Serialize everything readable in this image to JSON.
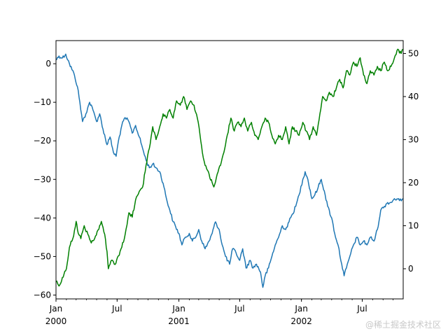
{
  "chart_data": {
    "type": "line",
    "x_axis": {
      "type": "date",
      "range": [
        "2000-01-01",
        "2002-10-31"
      ],
      "major_ticks": [
        {
          "date": "2000-01-01",
          "label": "Jan",
          "sublabel": "2000"
        },
        {
          "date": "2000-07-01",
          "label": "Jul",
          "sublabel": ""
        },
        {
          "date": "2001-01-01",
          "label": "Jan",
          "sublabel": "2001"
        },
        {
          "date": "2001-07-01",
          "label": "Jul",
          "sublabel": ""
        },
        {
          "date": "2002-01-01",
          "label": "Jan",
          "sublabel": "2002"
        },
        {
          "date": "2002-07-01",
          "label": "Jul",
          "sublabel": ""
        }
      ]
    },
    "left_axis": {
      "ylim": [
        -61,
        6
      ],
      "ticks": [
        0,
        -10,
        -20,
        -30,
        -40,
        -50,
        -60
      ],
      "tick_labels": [
        "0",
        "−10",
        "−20",
        "−30",
        "−40",
        "−50",
        "−60"
      ]
    },
    "right_axis": {
      "ylim": [
        -7,
        53
      ],
      "ticks": [
        0,
        10,
        20,
        30,
        40,
        50
      ],
      "tick_labels": [
        "0",
        "10",
        "20",
        "30",
        "40",
        "50"
      ]
    },
    "grid": false,
    "series": [
      {
        "axis": "left",
        "color": "#1f77b4",
        "points": [
          [
            "2000-01-01",
            1
          ],
          [
            "2000-01-10",
            2
          ],
          [
            "2000-01-20",
            1.5
          ],
          [
            "2000-01-30",
            2.5
          ],
          [
            "2000-02-10",
            0
          ],
          [
            "2000-02-25",
            -3
          ],
          [
            "2000-03-05",
            -6
          ],
          [
            "2000-03-12",
            -10
          ],
          [
            "2000-03-20",
            -15
          ],
          [
            "2000-03-30",
            -13
          ],
          [
            "2000-04-10",
            -10
          ],
          [
            "2000-04-20",
            -12
          ],
          [
            "2000-05-01",
            -15
          ],
          [
            "2000-05-10",
            -13
          ],
          [
            "2000-05-20",
            -17
          ],
          [
            "2000-06-01",
            -21
          ],
          [
            "2000-06-10",
            -19
          ],
          [
            "2000-06-20",
            -23
          ],
          [
            "2000-06-28",
            -24
          ],
          [
            "2000-07-05",
            -20
          ],
          [
            "2000-07-15",
            -16
          ],
          [
            "2000-07-25",
            -14
          ],
          [
            "2000-08-05",
            -15
          ],
          [
            "2000-08-15",
            -18
          ],
          [
            "2000-08-25",
            -16
          ],
          [
            "2000-09-05",
            -19
          ],
          [
            "2000-09-15",
            -22
          ],
          [
            "2000-09-25",
            -25
          ],
          [
            "2000-10-05",
            -27
          ],
          [
            "2000-10-15",
            -26
          ],
          [
            "2000-10-25",
            -27
          ],
          [
            "2000-11-05",
            -28
          ],
          [
            "2000-11-15",
            -31
          ],
          [
            "2000-11-25",
            -35
          ],
          [
            "2000-12-05",
            -38
          ],
          [
            "2000-12-15",
            -41
          ],
          [
            "2001-01-01",
            -44
          ],
          [
            "2001-01-10",
            -47
          ],
          [
            "2001-01-20",
            -45
          ],
          [
            "2001-02-01",
            -44
          ],
          [
            "2001-02-10",
            -46
          ],
          [
            "2001-02-20",
            -45
          ],
          [
            "2001-03-01",
            -43
          ],
          [
            "2001-03-10",
            -46
          ],
          [
            "2001-03-20",
            -48
          ],
          [
            "2001-04-01",
            -46
          ],
          [
            "2001-04-10",
            -44
          ],
          [
            "2001-04-20",
            -41
          ],
          [
            "2001-05-01",
            -43
          ],
          [
            "2001-05-10",
            -47
          ],
          [
            "2001-05-20",
            -50
          ],
          [
            "2001-06-01",
            -52
          ],
          [
            "2001-06-10",
            -48
          ],
          [
            "2001-06-20",
            -49
          ],
          [
            "2001-07-01",
            -51
          ],
          [
            "2001-07-10",
            -48
          ],
          [
            "2001-07-20",
            -53
          ],
          [
            "2001-08-01",
            -51
          ],
          [
            "2001-08-10",
            -53
          ],
          [
            "2001-08-20",
            -52
          ],
          [
            "2001-09-01",
            -54
          ],
          [
            "2001-09-08",
            -58
          ],
          [
            "2001-09-15",
            -55
          ],
          [
            "2001-09-25",
            -53
          ],
          [
            "2001-10-05",
            -50
          ],
          [
            "2001-10-15",
            -47
          ],
          [
            "2001-10-25",
            -45
          ],
          [
            "2001-11-05",
            -42
          ],
          [
            "2001-11-15",
            -43
          ],
          [
            "2001-11-25",
            -41
          ],
          [
            "2001-12-05",
            -39
          ],
          [
            "2001-12-15",
            -37
          ],
          [
            "2001-12-25",
            -34
          ],
          [
            "2002-01-05",
            -30
          ],
          [
            "2002-01-12",
            -28
          ],
          [
            "2002-01-20",
            -30
          ],
          [
            "2002-02-01",
            -35
          ],
          [
            "2002-02-10",
            -34
          ],
          [
            "2002-02-20",
            -32
          ],
          [
            "2002-03-01",
            -30
          ],
          [
            "2002-03-10",
            -33
          ],
          [
            "2002-03-20",
            -37
          ],
          [
            "2002-04-01",
            -40
          ],
          [
            "2002-04-10",
            -44
          ],
          [
            "2002-04-20",
            -47
          ],
          [
            "2002-05-01",
            -52
          ],
          [
            "2002-05-08",
            -55
          ],
          [
            "2002-05-15",
            -53
          ],
          [
            "2002-05-25",
            -50
          ],
          [
            "2002-06-05",
            -47
          ],
          [
            "2002-06-15",
            -45
          ],
          [
            "2002-06-25",
            -47
          ],
          [
            "2002-07-05",
            -46
          ],
          [
            "2002-07-15",
            -47
          ],
          [
            "2002-07-25",
            -45
          ],
          [
            "2002-08-05",
            -46
          ],
          [
            "2002-08-15",
            -43
          ],
          [
            "2002-08-25",
            -38
          ],
          [
            "2002-09-05",
            -37
          ],
          [
            "2002-09-15",
            -36
          ],
          [
            "2002-09-25",
            -36
          ],
          [
            "2002-10-05",
            -35
          ],
          [
            "2002-10-20",
            -35.5
          ],
          [
            "2002-10-31",
            -35
          ]
        ]
      },
      {
        "axis": "right",
        "color": "#008000",
        "points": [
          [
            "2000-01-01",
            -3
          ],
          [
            "2000-01-10",
            -4
          ],
          [
            "2000-01-20",
            -2
          ],
          [
            "2000-02-01",
            0
          ],
          [
            "2000-02-10",
            5
          ],
          [
            "2000-02-20",
            7
          ],
          [
            "2000-03-01",
            11
          ],
          [
            "2000-03-05",
            9
          ],
          [
            "2000-03-15",
            7
          ],
          [
            "2000-03-25",
            10
          ],
          [
            "2000-04-05",
            8
          ],
          [
            "2000-04-15",
            6
          ],
          [
            "2000-04-25",
            7
          ],
          [
            "2000-05-05",
            9
          ],
          [
            "2000-05-15",
            11
          ],
          [
            "2000-05-25",
            8
          ],
          [
            "2000-06-01",
            4
          ],
          [
            "2000-06-05",
            0
          ],
          [
            "2000-06-15",
            2
          ],
          [
            "2000-06-25",
            1
          ],
          [
            "2000-07-05",
            3
          ],
          [
            "2000-07-15",
            5
          ],
          [
            "2000-07-25",
            8
          ],
          [
            "2000-08-05",
            13
          ],
          [
            "2000-08-15",
            12
          ],
          [
            "2000-08-25",
            16
          ],
          [
            "2000-09-05",
            18
          ],
          [
            "2000-09-15",
            19
          ],
          [
            "2000-09-25",
            24
          ],
          [
            "2000-10-05",
            28
          ],
          [
            "2000-10-15",
            33
          ],
          [
            "2000-10-25",
            30
          ],
          [
            "2000-11-05",
            33
          ],
          [
            "2000-11-15",
            36
          ],
          [
            "2000-11-25",
            35
          ],
          [
            "2000-12-05",
            37
          ],
          [
            "2000-12-15",
            35
          ],
          [
            "2000-12-25",
            39
          ],
          [
            "2001-01-05",
            38
          ],
          [
            "2001-01-15",
            40
          ],
          [
            "2001-01-25",
            37
          ],
          [
            "2001-02-05",
            39
          ],
          [
            "2001-02-15",
            38
          ],
          [
            "2001-02-25",
            35
          ],
          [
            "2001-03-05",
            31
          ],
          [
            "2001-03-12",
            27
          ],
          [
            "2001-03-20",
            24
          ],
          [
            "2001-04-01",
            22
          ],
          [
            "2001-04-10",
            20
          ],
          [
            "2001-04-15",
            19
          ],
          [
            "2001-04-25",
            22
          ],
          [
            "2001-05-05",
            24
          ],
          [
            "2001-05-15",
            27
          ],
          [
            "2001-05-25",
            31
          ],
          [
            "2001-06-05",
            35
          ],
          [
            "2001-06-15",
            32
          ],
          [
            "2001-06-25",
            34
          ],
          [
            "2001-07-05",
            33
          ],
          [
            "2001-07-15",
            35
          ],
          [
            "2001-07-25",
            32
          ],
          [
            "2001-08-05",
            34
          ],
          [
            "2001-08-15",
            31
          ],
          [
            "2001-08-25",
            30
          ],
          [
            "2001-09-05",
            33
          ],
          [
            "2001-09-15",
            35
          ],
          [
            "2001-09-25",
            34
          ],
          [
            "2001-10-05",
            31
          ],
          [
            "2001-10-15",
            29
          ],
          [
            "2001-10-25",
            31
          ],
          [
            "2001-11-05",
            30
          ],
          [
            "2001-11-15",
            33
          ],
          [
            "2001-11-25",
            29
          ],
          [
            "2001-12-05",
            33
          ],
          [
            "2001-12-15",
            32
          ],
          [
            "2001-12-25",
            31
          ],
          [
            "2002-01-05",
            34
          ],
          [
            "2002-01-15",
            32
          ],
          [
            "2002-01-25",
            30
          ],
          [
            "2002-02-05",
            33
          ],
          [
            "2002-02-15",
            31
          ],
          [
            "2002-02-25",
            36
          ],
          [
            "2002-03-05",
            40
          ],
          [
            "2002-03-15",
            39
          ],
          [
            "2002-03-25",
            41
          ],
          [
            "2002-04-05",
            40
          ],
          [
            "2002-04-15",
            42
          ],
          [
            "2002-04-25",
            44
          ],
          [
            "2002-05-05",
            42
          ],
          [
            "2002-05-15",
            46
          ],
          [
            "2002-05-25",
            45
          ],
          [
            "2002-06-05",
            48
          ],
          [
            "2002-06-15",
            47
          ],
          [
            "2002-06-25",
            49
          ],
          [
            "2002-07-05",
            45
          ],
          [
            "2002-07-15",
            43
          ],
          [
            "2002-07-25",
            46
          ],
          [
            "2002-08-05",
            45
          ],
          [
            "2002-08-15",
            47
          ],
          [
            "2002-08-25",
            46
          ],
          [
            "2002-09-05",
            48
          ],
          [
            "2002-09-15",
            46
          ],
          [
            "2002-09-25",
            47
          ],
          [
            "2002-10-05",
            49
          ],
          [
            "2002-10-15",
            51
          ],
          [
            "2002-10-25",
            50
          ],
          [
            "2002-10-31",
            51
          ]
        ]
      }
    ]
  },
  "watermark": "@稀土掘金技术社区"
}
